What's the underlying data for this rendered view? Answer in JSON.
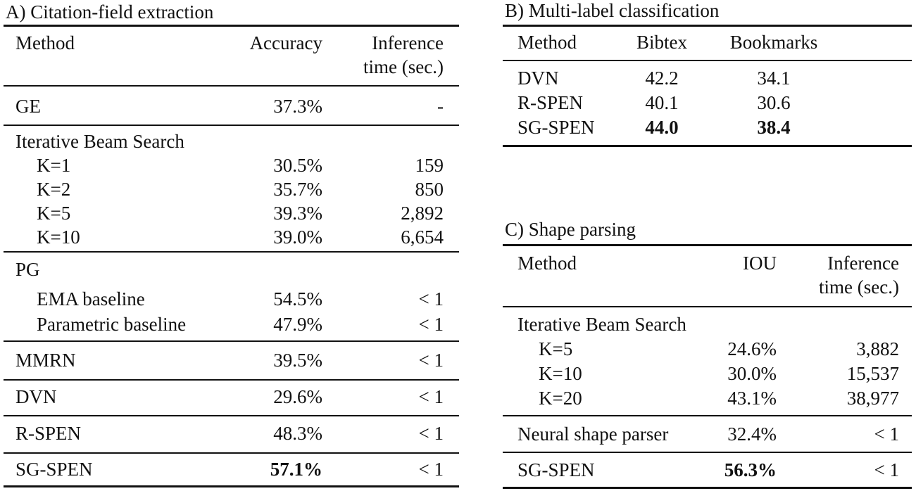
{
  "tables": [
    {
      "id": "A",
      "title": "A) Citation-field extraction",
      "headers": [
        "Method",
        "Accuracy",
        "Inference\ntime (sec.)"
      ],
      "rows": [
        {
          "cells": [
            "GE",
            "37.3%",
            "-"
          ]
        },
        {
          "cells": [
            "Iterative Beam Search",
            "",
            ""
          ],
          "group": true
        },
        {
          "cells": [
            "K=1",
            "30.5%",
            "159"
          ],
          "indent": true
        },
        {
          "cells": [
            "K=2",
            "35.7%",
            "850"
          ],
          "indent": true
        },
        {
          "cells": [
            "K=5",
            "39.3%",
            "2,892"
          ],
          "indent": true
        },
        {
          "cells": [
            "K=10",
            "39.0%",
            "6,654"
          ],
          "indent": true
        },
        {
          "cells": [
            "PG",
            "",
            ""
          ],
          "group": true
        },
        {
          "cells": [
            "EMA baseline",
            "54.5%",
            "< 1"
          ],
          "indent": true
        },
        {
          "cells": [
            "Parametric baseline",
            "47.9%",
            "< 1"
          ],
          "indent": true
        },
        {
          "cells": [
            "MMRN",
            "39.5%",
            "< 1"
          ]
        },
        {
          "cells": [
            "DVN",
            "29.6%",
            "< 1"
          ]
        },
        {
          "cells": [
            "R-SPEN",
            "48.3%",
            "< 1"
          ]
        },
        {
          "cells": [
            "SG-SPEN",
            "57.1%",
            "< 1"
          ],
          "bold_cols": [
            1
          ]
        }
      ]
    },
    {
      "id": "B",
      "title": "B) Multi-label classification",
      "headers": [
        "Method",
        "Bibtex",
        "Bookmarks"
      ],
      "rows": [
        {
          "cells": [
            "DVN",
            "42.2",
            "34.1"
          ]
        },
        {
          "cells": [
            "R-SPEN",
            "40.1",
            "30.6"
          ]
        },
        {
          "cells": [
            "SG-SPEN",
            "44.0",
            "38.4"
          ],
          "bold_cols": [
            1,
            2
          ]
        }
      ]
    },
    {
      "id": "C",
      "title": "C) Shape parsing",
      "headers": [
        "Method",
        "IOU",
        "Inference\ntime (sec.)"
      ],
      "rows": [
        {
          "cells": [
            "Iterative Beam Search",
            "",
            ""
          ],
          "group": true
        },
        {
          "cells": [
            "K=5",
            "24.6%",
            "3,882"
          ],
          "indent": true
        },
        {
          "cells": [
            "K=10",
            "30.0%",
            "15,537"
          ],
          "indent": true
        },
        {
          "cells": [
            "K=20",
            "43.1%",
            "38,977"
          ],
          "indent": true
        },
        {
          "cells": [
            "Neural shape parser",
            "32.4%",
            "< 1"
          ]
        },
        {
          "cells": [
            "SG-SPEN",
            "56.3%",
            "< 1"
          ],
          "bold_cols": [
            1
          ]
        }
      ]
    }
  ]
}
